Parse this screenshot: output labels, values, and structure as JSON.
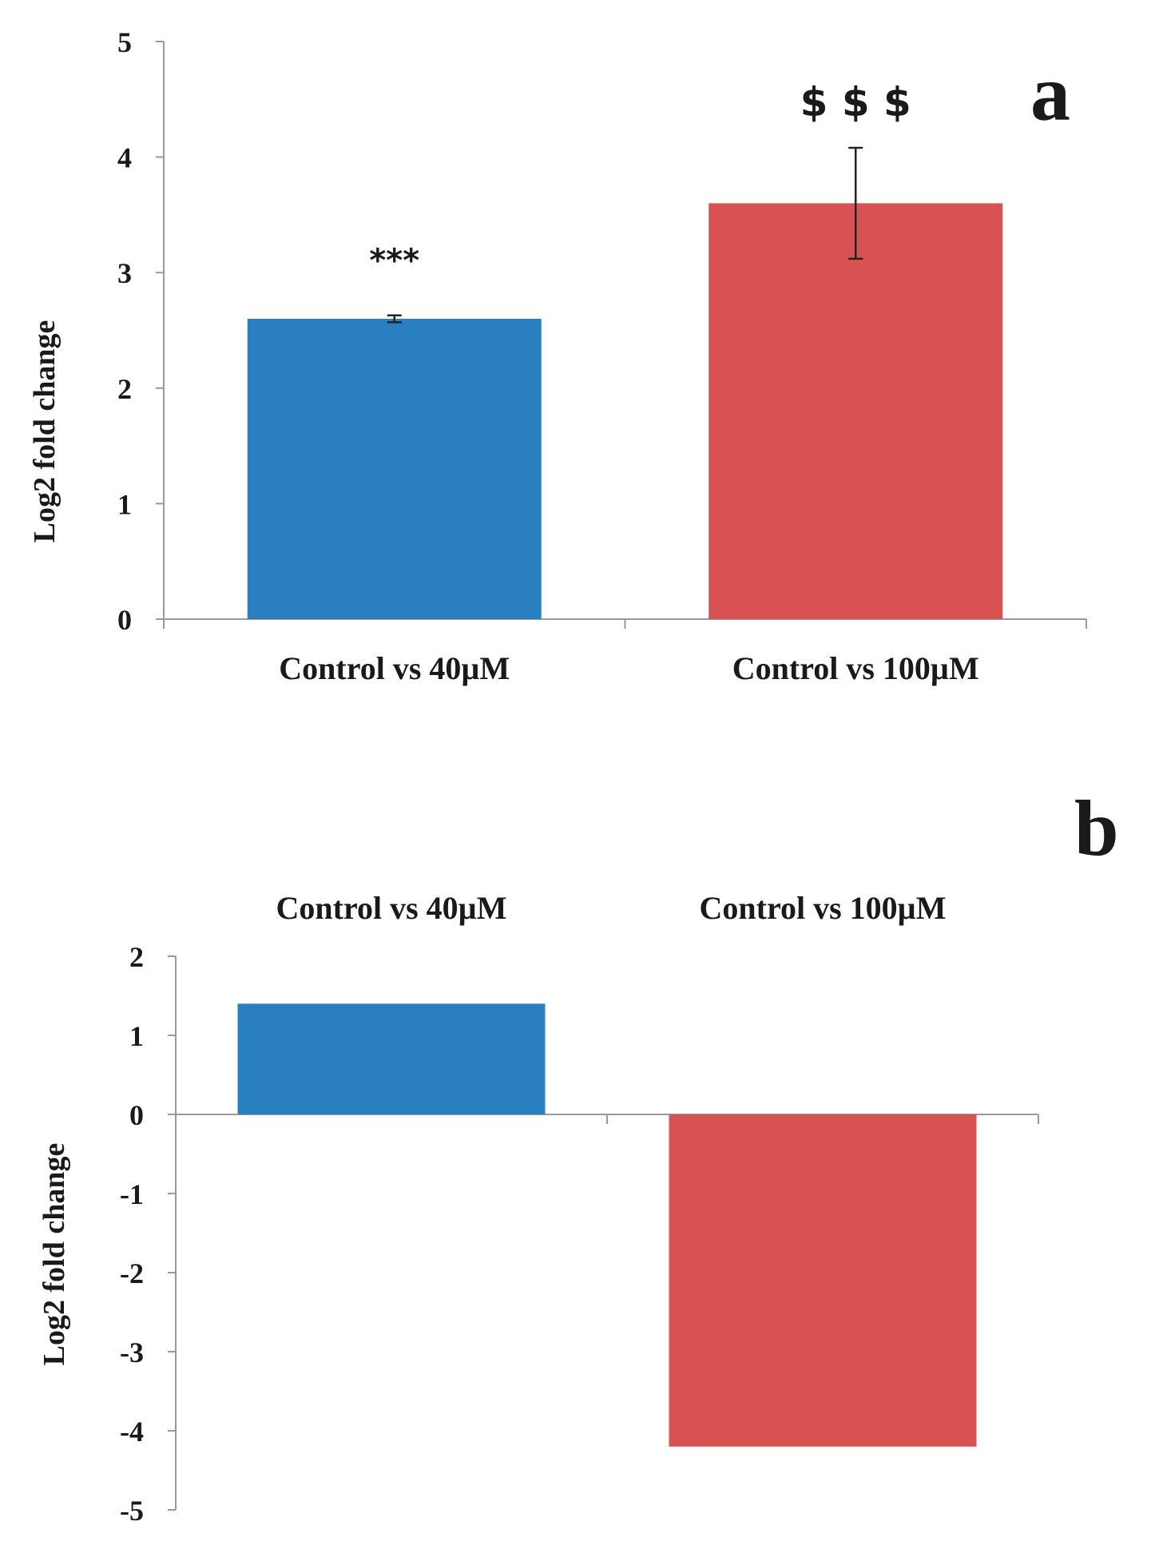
{
  "chart_data": [
    {
      "panel": "a",
      "type": "bar",
      "categories": [
        "Control vs 40µM",
        "Control vs 100µM"
      ],
      "values": [
        2.6,
        3.6
      ],
      "errors": [
        0.03,
        0.48
      ],
      "colors": [
        "#2a7fc1",
        "#d95252"
      ],
      "annotations": [
        "***",
        "$ $ $"
      ],
      "ylabel": "Log2 fold change",
      "ylim": [
        0,
        5
      ],
      "yticks": [
        "0",
        "1",
        "2",
        "3",
        "4",
        "5"
      ],
      "category_labels_position": "bottom"
    },
    {
      "panel": "b",
      "type": "bar",
      "categories": [
        "Control vs 40µM",
        "Control vs 100µM"
      ],
      "values": [
        1.4,
        -4.2
      ],
      "colors": [
        "#2a7fc1",
        "#d95252"
      ],
      "ylabel": "Log2 fold change",
      "ylim": [
        -5,
        2
      ],
      "yticks": [
        "2",
        "1",
        "0",
        "-1",
        "-2",
        "-3",
        "-4",
        "-5"
      ],
      "category_labels_position": "top"
    }
  ]
}
